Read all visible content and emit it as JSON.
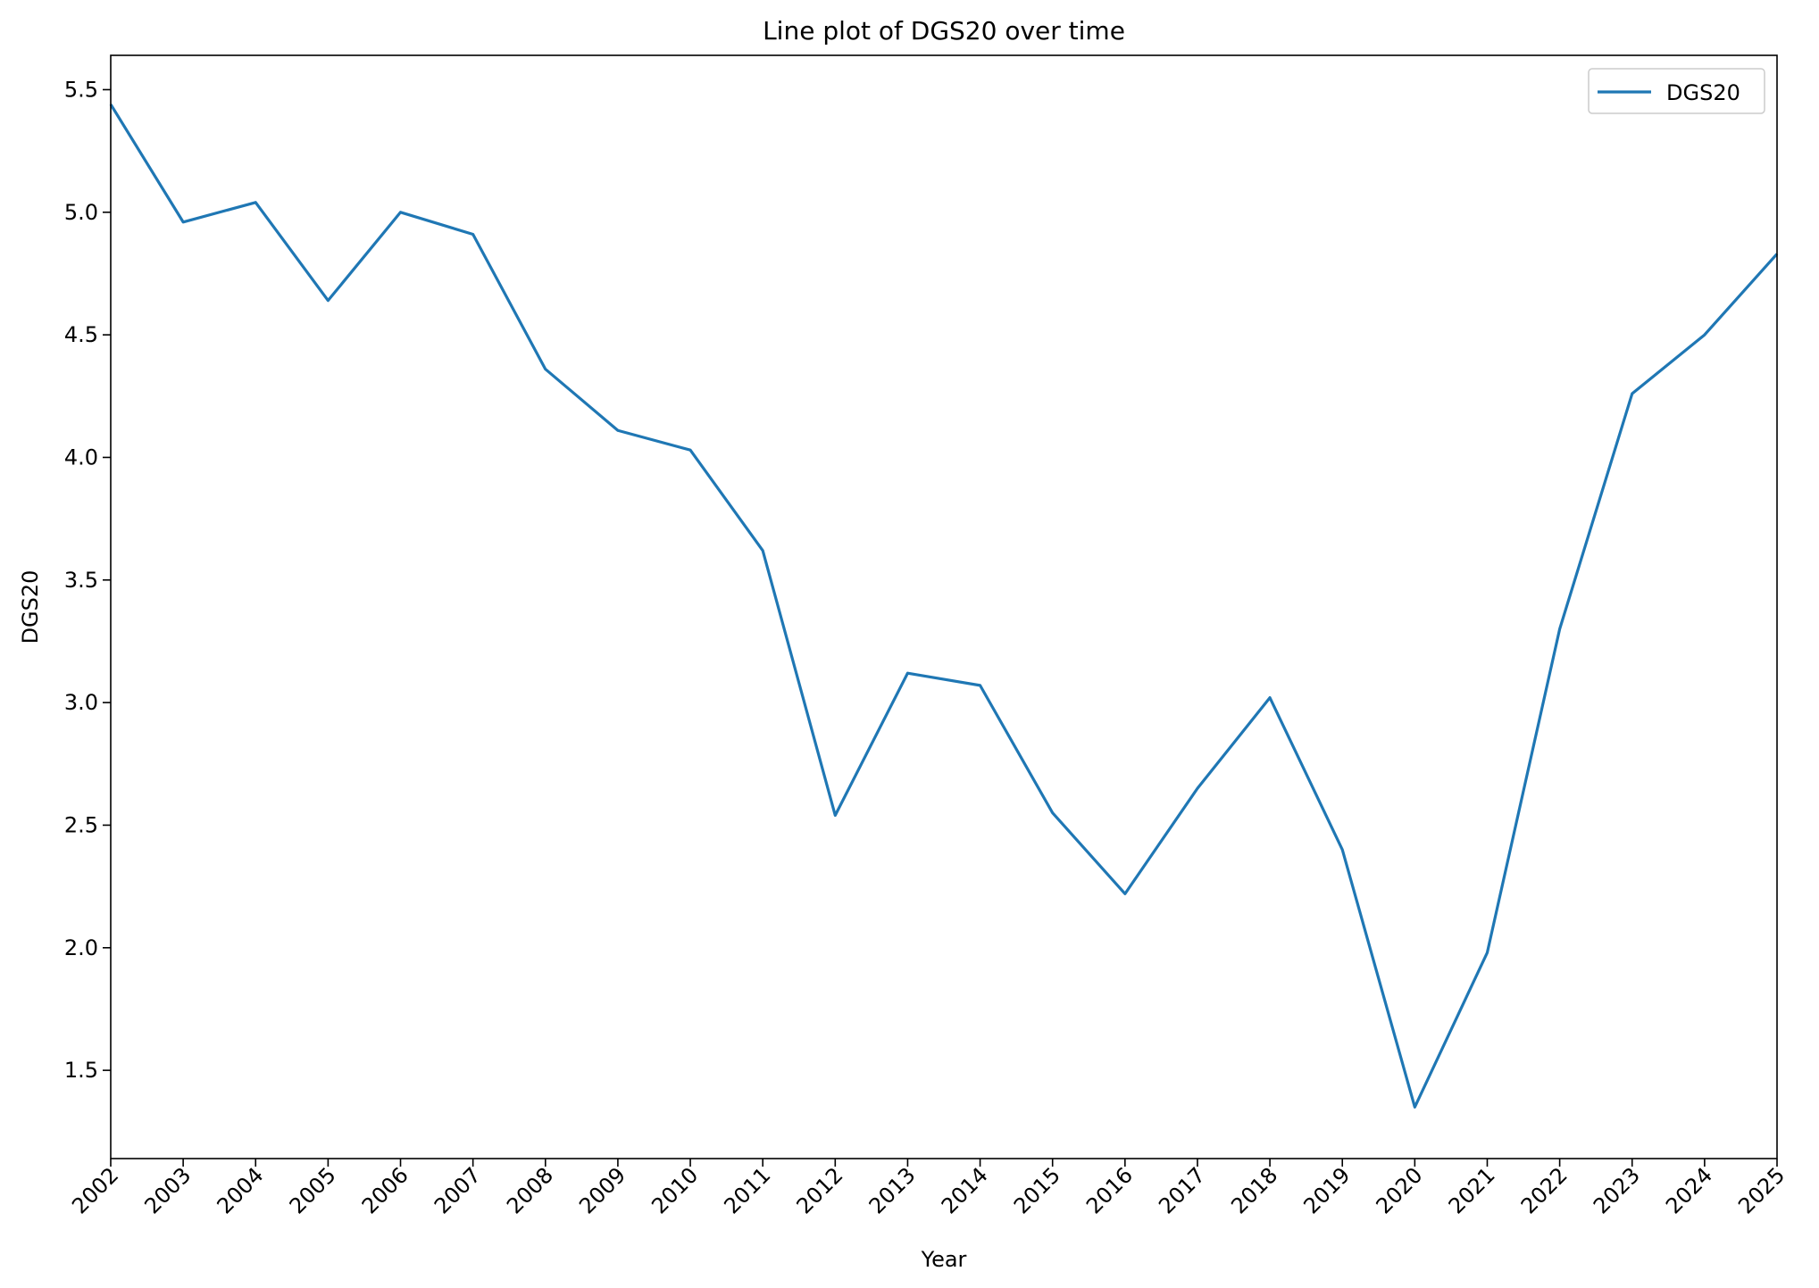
{
  "chart_data": {
    "type": "line",
    "title": "Line plot of DGS20 over time",
    "xlabel": "Year",
    "ylabel": "DGS20",
    "x": [
      "2002",
      "2003",
      "2004",
      "2005",
      "2006",
      "2007",
      "2008",
      "2009",
      "2010",
      "2011",
      "2012",
      "2013",
      "2014",
      "2015",
      "2016",
      "2017",
      "2018",
      "2019",
      "2020",
      "2021",
      "2022",
      "2023",
      "2024",
      "2025"
    ],
    "xlim": [
      2002,
      2025
    ],
    "ylim": [
      1.14,
      5.64
    ],
    "yticks": [
      "1.5",
      "2.0",
      "2.5",
      "3.0",
      "3.5",
      "4.0",
      "4.5",
      "5.0",
      "5.5"
    ],
    "series": [
      {
        "name": "DGS20",
        "color": "#1f77b4",
        "values": [
          5.44,
          4.96,
          5.04,
          4.64,
          5.0,
          4.91,
          4.36,
          4.11,
          4.03,
          3.62,
          2.54,
          3.12,
          3.07,
          2.55,
          2.22,
          2.65,
          3.02,
          2.4,
          1.35,
          1.98,
          3.3,
          4.26,
          4.5,
          4.83
        ]
      }
    ],
    "legend": {
      "position": "top-right",
      "entries": [
        "DGS20"
      ]
    },
    "grid": false
  }
}
